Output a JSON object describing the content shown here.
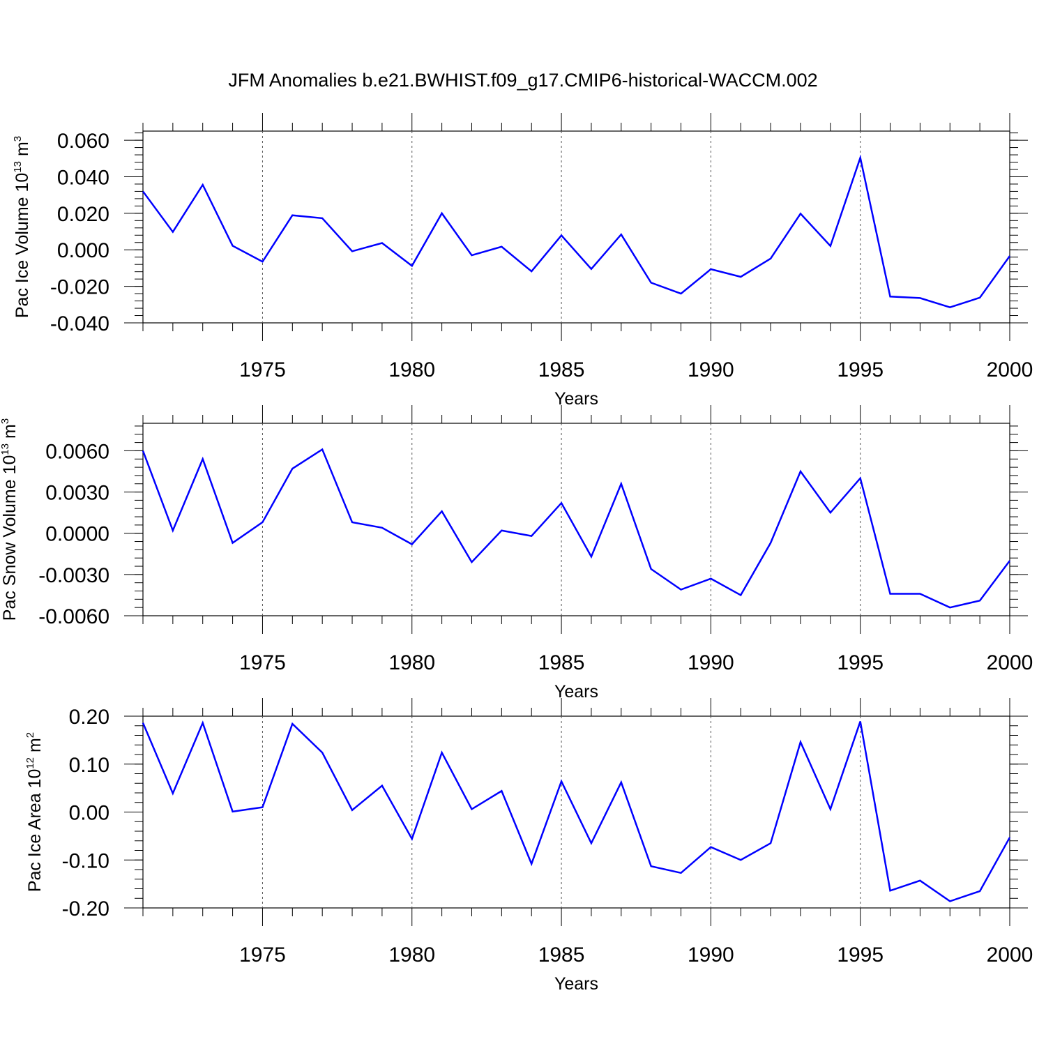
{
  "title": "JFM Anomalies b.e21.BWHIST.f09_g17.CMIP6-historical-WACCM.002",
  "colors": {
    "series": "#0000ff",
    "grid": "#555555",
    "axes": "#000000"
  },
  "chart_data": [
    {
      "type": "line",
      "ylabel": {
        "text": "Pac Ice Volume 10",
        "sup": "13",
        "unit": " m",
        "unit_sup": "3"
      },
      "xlabel": "Years",
      "xlim": [
        1971,
        2000
      ],
      "ylim": [
        -0.04,
        0.065
      ],
      "yticks": [
        -0.04,
        -0.02,
        0.0,
        0.02,
        0.04,
        0.06
      ],
      "ytick_labels": [
        "-0.040",
        "-0.020",
        "0.000",
        "0.020",
        "0.040",
        "0.060"
      ],
      "xticks": [
        1975,
        1980,
        1985,
        1990,
        1995,
        2000
      ],
      "xtick_labels": [
        "1975",
        "1980",
        "1985",
        "1990",
        "1995",
        "2000"
      ],
      "grid": "dashed vertical at major x ticks",
      "x": [
        1971,
        1972,
        1973,
        1974,
        1975,
        1976,
        1977,
        1978,
        1979,
        1980,
        1981,
        1982,
        1983,
        1984,
        1985,
        1986,
        1987,
        1988,
        1989,
        1990,
        1991,
        1992,
        1993,
        1994,
        1995,
        1996,
        1997,
        1998,
        1999,
        2000
      ],
      "series": [
        {
          "values": [
            0.032,
            0.0098,
            0.0356,
            0.0022,
            -0.0065,
            0.0189,
            0.0173,
            -0.0008,
            0.0037,
            -0.0088,
            0.02,
            -0.003,
            0.0017,
            -0.0118,
            0.0079,
            -0.0105,
            0.0084,
            -0.018,
            -0.024,
            -0.0106,
            -0.0148,
            -0.0048,
            0.0198,
            0.0021,
            0.0504,
            -0.0256,
            -0.0264,
            -0.0315,
            -0.0262,
            -0.0034
          ]
        }
      ]
    },
    {
      "type": "line",
      "ylabel": {
        "text": "Pac Snow Volume 10",
        "sup": "13",
        "unit": " m",
        "unit_sup": "3"
      },
      "xlabel": "Years",
      "xlim": [
        1971,
        2000
      ],
      "ylim": [
        -0.006,
        0.008
      ],
      "yticks": [
        -0.006,
        -0.003,
        0.0,
        0.003,
        0.006
      ],
      "ytick_labels": [
        "-0.0060",
        "-0.0030",
        "0.0000",
        "0.0030",
        "0.0060"
      ],
      "xticks": [
        1975,
        1980,
        1985,
        1990,
        1995,
        2000
      ],
      "xtick_labels": [
        "1975",
        "1980",
        "1985",
        "1990",
        "1995",
        "2000"
      ],
      "grid": "dashed vertical at major x ticks",
      "x": [
        1971,
        1972,
        1973,
        1974,
        1975,
        1976,
        1977,
        1978,
        1979,
        1980,
        1981,
        1982,
        1983,
        1984,
        1985,
        1986,
        1987,
        1988,
        1989,
        1990,
        1991,
        1992,
        1993,
        1994,
        1995,
        1996,
        1997,
        1998,
        1999,
        2000
      ],
      "series": [
        {
          "values": [
            0.006,
            0.0002,
            0.0054,
            -0.0007,
            0.0008,
            0.0047,
            0.0061,
            0.0008,
            0.0004,
            -0.0008,
            0.0016,
            -0.0021,
            0.0002,
            -0.0002,
            0.0022,
            -0.0017,
            0.0036,
            -0.0026,
            -0.0041,
            -0.0033,
            -0.0045,
            -0.0007,
            0.0045,
            0.0015,
            0.004,
            -0.0044,
            -0.0044,
            -0.0054,
            -0.0049,
            -0.002
          ]
        }
      ]
    },
    {
      "type": "line",
      "ylabel": {
        "text": "Pac Ice Area 10",
        "sup": "12",
        "unit": " m",
        "unit_sup": "2"
      },
      "xlabel": "Years",
      "xlim": [
        1971,
        2000
      ],
      "ylim": [
        -0.2,
        0.2
      ],
      "yticks": [
        -0.2,
        -0.1,
        0.0,
        0.1,
        0.2
      ],
      "ytick_labels": [
        "-0.20",
        "-0.10",
        "0.00",
        "0.10",
        "0.20"
      ],
      "xticks": [
        1975,
        1980,
        1985,
        1990,
        1995,
        2000
      ],
      "xtick_labels": [
        "1975",
        "1980",
        "1985",
        "1990",
        "1995",
        "2000"
      ],
      "grid": "dashed vertical at major x ticks",
      "x": [
        1971,
        1972,
        1973,
        1974,
        1975,
        1976,
        1977,
        1978,
        1979,
        1980,
        1981,
        1982,
        1983,
        1984,
        1985,
        1986,
        1987,
        1988,
        1989,
        1990,
        1991,
        1992,
        1993,
        1994,
        1995,
        1996,
        1997,
        1998,
        1999,
        2000
      ],
      "series": [
        {
          "values": [
            0.186,
            0.039,
            0.186,
            0.001,
            0.01,
            0.184,
            0.124,
            0.004,
            0.055,
            -0.056,
            0.124,
            0.006,
            0.044,
            -0.108,
            0.064,
            -0.065,
            0.062,
            -0.113,
            -0.127,
            -0.073,
            -0.1,
            -0.065,
            0.146,
            0.006,
            0.189,
            -0.164,
            -0.143,
            -0.186,
            -0.165,
            -0.053
          ]
        }
      ]
    }
  ]
}
